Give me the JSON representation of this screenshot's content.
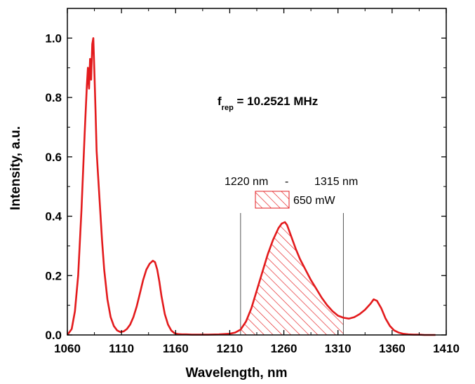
{
  "chart_data": {
    "type": "line",
    "title": "",
    "xlabel": "Wavelength, nm",
    "ylabel": "Intensity, a.u.",
    "xlim": [
      1060,
      1410
    ],
    "ylim": [
      0,
      1.1
    ],
    "x_ticks": [
      "1060",
      "1110",
      "1160",
      "1210",
      "1260",
      "1310",
      "1360",
      "1410"
    ],
    "y_ticks": [
      "0.0",
      "0.2",
      "0.4",
      "0.6",
      "0.8",
      "1.0"
    ],
    "grid": false,
    "legend": "none",
    "series": [
      {
        "color": "#e31a1c",
        "x": [
          1060,
          1064,
          1067,
          1070,
          1073,
          1076,
          1078,
          1079,
          1080,
          1081,
          1082,
          1083,
          1084,
          1085,
          1086,
          1087,
          1088,
          1090,
          1092,
          1094,
          1097,
          1100,
          1103,
          1106,
          1109,
          1112,
          1115,
          1118,
          1121,
          1124,
          1127,
          1130,
          1133,
          1136,
          1139,
          1141,
          1143,
          1145,
          1147,
          1150,
          1153,
          1156,
          1159,
          1162,
          1166,
          1170,
          1175,
          1180,
          1190,
          1200,
          1210,
          1215,
          1220,
          1225,
          1230,
          1235,
          1240,
          1245,
          1250,
          1255,
          1258,
          1261,
          1263,
          1265,
          1268,
          1271,
          1275,
          1280,
          1285,
          1290,
          1295,
          1300,
          1305,
          1310,
          1315,
          1320,
          1325,
          1330,
          1335,
          1340,
          1343,
          1346,
          1350,
          1354,
          1358,
          1362,
          1366,
          1370,
          1375,
          1380,
          1385,
          1390,
          1395,
          1400
        ],
        "y": [
          0.0,
          0.02,
          0.08,
          0.2,
          0.42,
          0.68,
          0.84,
          0.9,
          0.83,
          0.93,
          0.86,
          0.98,
          1.0,
          0.88,
          0.76,
          0.62,
          0.56,
          0.44,
          0.32,
          0.22,
          0.12,
          0.06,
          0.03,
          0.015,
          0.01,
          0.012,
          0.02,
          0.035,
          0.06,
          0.095,
          0.14,
          0.185,
          0.22,
          0.24,
          0.25,
          0.245,
          0.22,
          0.18,
          0.13,
          0.07,
          0.035,
          0.015,
          0.006,
          0.003,
          0.002,
          0.002,
          0.001,
          0.001,
          0.001,
          0.002,
          0.004,
          0.008,
          0.018,
          0.045,
          0.09,
          0.15,
          0.21,
          0.27,
          0.32,
          0.36,
          0.375,
          0.38,
          0.37,
          0.35,
          0.32,
          0.29,
          0.255,
          0.22,
          0.185,
          0.155,
          0.125,
          0.1,
          0.08,
          0.065,
          0.058,
          0.055,
          0.06,
          0.07,
          0.085,
          0.105,
          0.12,
          0.115,
          0.09,
          0.055,
          0.03,
          0.015,
          0.008,
          0.004,
          0.002,
          0.001,
          0.001,
          0.0,
          0.0,
          0.0
        ]
      }
    ],
    "shaded_region": {
      "x_start": 1220,
      "x_end": 1315,
      "pattern": "diagonal-hatch",
      "color": "#e31a1c"
    },
    "vertical_lines": [
      1220,
      1315
    ],
    "annotations": {
      "freq_main": "f",
      "freq_sub": "rep",
      "freq_value": " = 10.2521 MHz",
      "range_start": "1220 nm",
      "range_dash": "-",
      "range_end": "1315 nm",
      "power": "650 mW"
    }
  }
}
